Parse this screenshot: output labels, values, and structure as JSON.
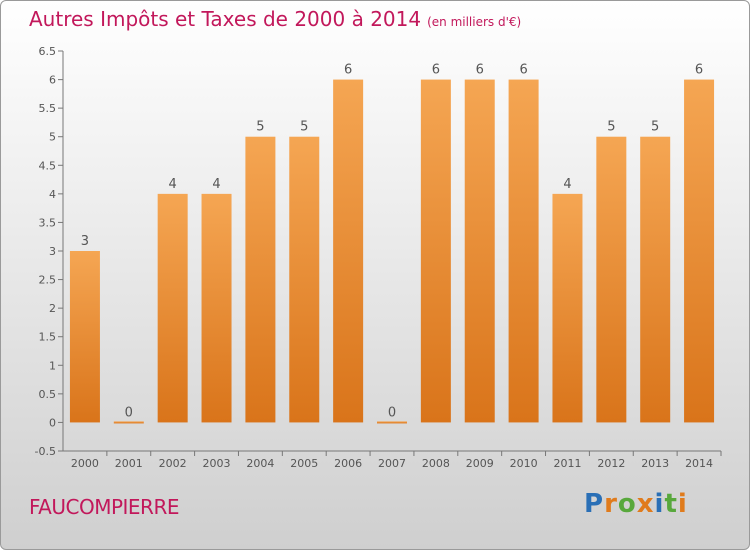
{
  "chart_data": {
    "type": "bar",
    "title": "Autres Impôts et Taxes de 2000 à 2014",
    "subtitle": "(en milliers d'€)",
    "categories": [
      "2000",
      "2001",
      "2002",
      "2003",
      "2004",
      "2005",
      "2006",
      "2007",
      "2008",
      "2009",
      "2010",
      "2011",
      "2012",
      "2013",
      "2014"
    ],
    "values": [
      3,
      0,
      4,
      4,
      5,
      5,
      6,
      0,
      6,
      6,
      6,
      4,
      5,
      5,
      6
    ],
    "data_labels": [
      "3",
      "0",
      "4",
      "4",
      "5",
      "5",
      "6",
      "0",
      "6",
      "6",
      "6",
      "4",
      "5",
      "5",
      "6"
    ],
    "y_ticks": [
      "-0.5",
      "0",
      "0.5",
      "1",
      "1.5",
      "2",
      "2.5",
      "3",
      "3.5",
      "4",
      "4.5",
      "5",
      "5.5",
      "6",
      "6.5"
    ],
    "ylim": [
      -0.5,
      6.5
    ],
    "grid": false,
    "bar_color": "#f0953c",
    "label_color": "#555555"
  },
  "commune": "FAUCOMPIERRE",
  "brand": {
    "letters": [
      "P",
      "r",
      "o",
      "x",
      "i",
      "t",
      "i"
    ],
    "colors": [
      "#2a6fb6",
      "#e07b1c",
      "#58a83c",
      "#e07b1c",
      "#2a6fb6",
      "#58a83c",
      "#e07b1c"
    ]
  },
  "title_color": "#c2185b"
}
